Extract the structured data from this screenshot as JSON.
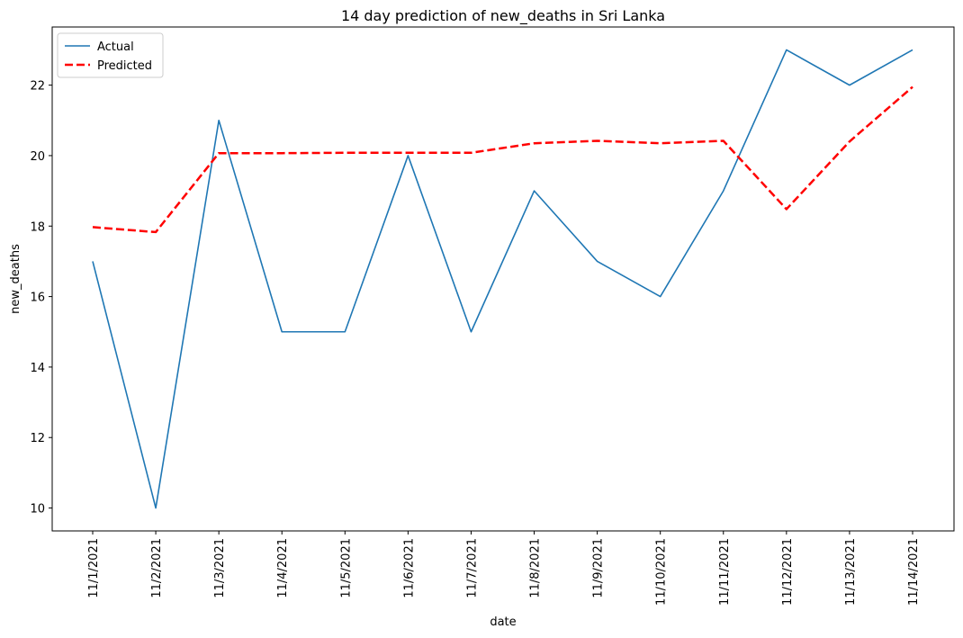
{
  "chart_data": {
    "type": "line",
    "title": "14 day prediction of new_deaths in Sri Lanka",
    "xlabel": "date",
    "ylabel": "new_deaths",
    "categories": [
      "11/1/2021",
      "11/2/2021",
      "11/3/2021",
      "11/4/2021",
      "11/5/2021",
      "11/6/2021",
      "11/7/2021",
      "11/8/2021",
      "11/9/2021",
      "11/10/2021",
      "11/11/2021",
      "11/12/2021",
      "11/13/2021",
      "11/14/2021"
    ],
    "series": [
      {
        "name": "Actual",
        "values": [
          17,
          10,
          21,
          15,
          15,
          20,
          15,
          19,
          17,
          16,
          19,
          23,
          22,
          23
        ],
        "color": "#1f77b4",
        "style": "solid"
      },
      {
        "name": "Predicted",
        "values": [
          17.97,
          17.83,
          20.07,
          20.07,
          20.08,
          20.08,
          20.08,
          20.35,
          20.42,
          20.35,
          20.42,
          18.48,
          20.4,
          21.95
        ],
        "color": "#ff0000",
        "style": "dashed"
      }
    ],
    "ylim": [
      9.35,
      23.65
    ],
    "yticks": [
      10,
      12,
      14,
      16,
      18,
      20,
      22
    ],
    "grid": false,
    "legend_position": "top-left"
  }
}
